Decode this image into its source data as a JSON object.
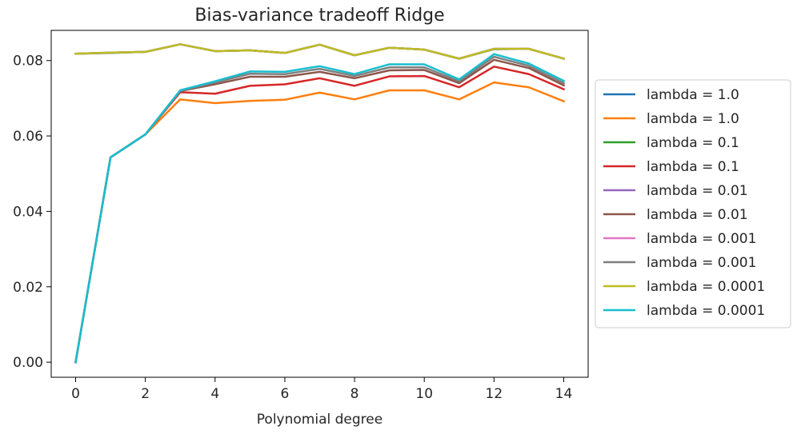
{
  "chart_data": {
    "type": "line",
    "title": "Bias-variance tradeoff Ridge",
    "xlabel": "Polynomial degree",
    "ylabel": "",
    "xlim": [
      -0.7,
      14.7
    ],
    "ylim": [
      -0.004,
      0.088
    ],
    "xticks": [
      0,
      2,
      4,
      6,
      8,
      10,
      12,
      14
    ],
    "yticks": [
      0.0,
      0.02,
      0.04,
      0.06,
      0.08
    ],
    "xtick_labels": [
      "0",
      "2",
      "4",
      "6",
      "8",
      "10",
      "12",
      "14"
    ],
    "ytick_labels": [
      "0.00",
      "0.02",
      "0.04",
      "0.06",
      "0.08"
    ],
    "grid": false,
    "legend_position": "outside-right",
    "x": [
      0,
      1,
      2,
      3,
      4,
      5,
      6,
      7,
      8,
      9,
      10,
      11,
      12,
      13,
      14
    ],
    "series": [
      {
        "name": "lambda = 1.0",
        "color": "#1f77b4",
        "values": [
          0.0818,
          0.082,
          0.0823,
          0.0843,
          0.0825,
          0.0827,
          0.082,
          0.0842,
          0.0814,
          0.0834,
          0.0829,
          0.0805,
          0.083,
          0.0831,
          0.0805
        ]
      },
      {
        "name": "lambda = 1.0",
        "color": "#ff7f0e",
        "values": [
          0.0,
          0.0543,
          0.0604,
          0.0697,
          0.0687,
          0.0693,
          0.0696,
          0.0715,
          0.0697,
          0.0721,
          0.0721,
          0.0697,
          0.0742,
          0.0729,
          0.0692
        ]
      },
      {
        "name": "lambda = 0.1",
        "color": "#2ca02c",
        "values": [
          0.0818,
          0.0821,
          0.0823,
          0.0843,
          0.0825,
          0.0827,
          0.082,
          0.0842,
          0.0814,
          0.0834,
          0.0829,
          0.0805,
          0.0831,
          0.0831,
          0.0805
        ]
      },
      {
        "name": "lambda = 0.1",
        "color": "#d62728",
        "values": [
          0.0,
          0.0543,
          0.0604,
          0.0716,
          0.0712,
          0.0733,
          0.0737,
          0.0753,
          0.0733,
          0.0758,
          0.0759,
          0.0729,
          0.0784,
          0.0764,
          0.0724
        ]
      },
      {
        "name": "lambda = 0.01",
        "color": "#9467bd",
        "values": [
          0.0818,
          0.0821,
          0.0823,
          0.0843,
          0.0825,
          0.0827,
          0.082,
          0.0842,
          0.0814,
          0.0834,
          0.0829,
          0.0805,
          0.0831,
          0.0831,
          0.0805
        ]
      },
      {
        "name": "lambda = 0.01",
        "color": "#8c564b",
        "values": [
          0.0,
          0.0543,
          0.0604,
          0.0719,
          0.0737,
          0.0757,
          0.0757,
          0.077,
          0.0753,
          0.0774,
          0.0775,
          0.074,
          0.0802,
          0.078,
          0.0734
        ]
      },
      {
        "name": "lambda = 0.001",
        "color": "#e377c2",
        "values": [
          0.0818,
          0.0821,
          0.0823,
          0.0843,
          0.0825,
          0.0827,
          0.082,
          0.0842,
          0.0814,
          0.0834,
          0.0829,
          0.0805,
          0.0831,
          0.0831,
          0.0805
        ]
      },
      {
        "name": "lambda = 0.001",
        "color": "#7f7f7f",
        "values": [
          0.0,
          0.0543,
          0.0604,
          0.072,
          0.0742,
          0.0765,
          0.0764,
          0.0778,
          0.0759,
          0.0782,
          0.0782,
          0.0745,
          0.081,
          0.0786,
          0.074
        ]
      },
      {
        "name": "lambda = 0.0001",
        "color": "#bcbd22",
        "values": [
          0.0818,
          0.0821,
          0.0823,
          0.0843,
          0.0825,
          0.0827,
          0.082,
          0.0842,
          0.0814,
          0.0834,
          0.0829,
          0.0805,
          0.0831,
          0.0831,
          0.0805
        ]
      },
      {
        "name": "lambda = 0.0001",
        "color": "#17becf",
        "values": [
          0.0,
          0.0543,
          0.0604,
          0.0721,
          0.0745,
          0.0771,
          0.077,
          0.0785,
          0.0764,
          0.079,
          0.079,
          0.075,
          0.0817,
          0.0792,
          0.0746
        ]
      }
    ]
  }
}
